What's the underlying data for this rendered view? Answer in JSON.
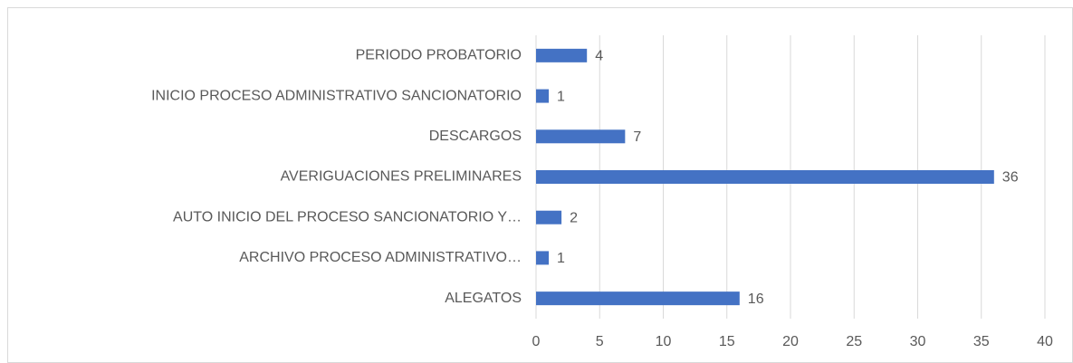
{
  "chart_data": {
    "type": "hbar",
    "categories": [
      "PERIODO PROBATORIO",
      "INICIO PROCESO ADMINISTRATIVO SANCIONATORIO",
      "DESCARGOS",
      "AVERIGUACIONES PRELIMINARES",
      "AUTO INICIO DEL PROCESO SANCIONATORIO Y…",
      "ARCHIVO PROCESO ADMINISTRATIVO…",
      "ALEGATOS"
    ],
    "values": [
      4,
      1,
      7,
      36,
      2,
      1,
      16
    ],
    "color": "#4472c4",
    "xlim": [
      0,
      40
    ],
    "xticks": [
      0,
      5,
      10,
      15,
      20,
      25,
      30,
      35,
      40
    ],
    "grid": true
  }
}
